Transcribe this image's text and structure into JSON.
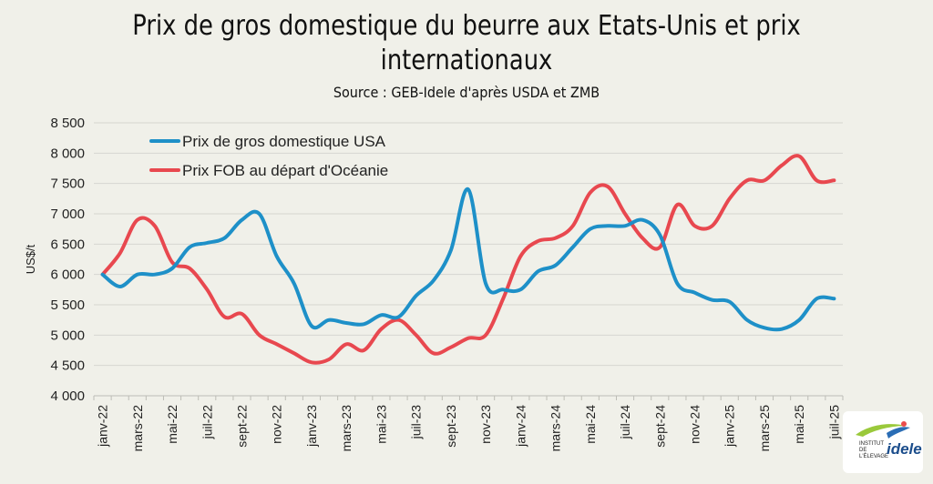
{
  "chart_data": {
    "type": "line",
    "title": "Prix de gros domestique du beurre aux Etats-Unis et prix internationaux",
    "subtitle": "Source : GEB-Idele d'après USDA et ZMB",
    "ylabel": "US$/t",
    "ylim": [
      4000,
      8500
    ],
    "yticks": [
      4000,
      4500,
      5000,
      5500,
      6000,
      6500,
      7000,
      7500,
      8000,
      8500
    ],
    "ytick_labels": [
      "4 000",
      "4 500",
      "5 000",
      "5 500",
      "6 000",
      "6 500",
      "7 000",
      "7 500",
      "8 000",
      "8 500"
    ],
    "categories": [
      "janv-22",
      "févr-22",
      "mars-22",
      "avr-22",
      "mai-22",
      "juin-22",
      "juil-22",
      "août-22",
      "sept-22",
      "oct-22",
      "nov-22",
      "déc-22",
      "janv-23",
      "févr-23",
      "mars-23",
      "avr-23",
      "mai-23",
      "juin-23",
      "juil-23",
      "août-23",
      "sept-23",
      "oct-23",
      "nov-23",
      "déc-23",
      "janv-24",
      "févr-24",
      "mars-24",
      "avr-24",
      "mai-24",
      "juin-24",
      "juil-24",
      "août-24",
      "sept-24",
      "oct-24",
      "nov-24",
      "déc-24",
      "janv-25",
      "févr-25",
      "mars-25",
      "avr-25",
      "mai-25",
      "juin-25",
      "juil-25"
    ],
    "xtick_labels": [
      "janv-22",
      "mars-22",
      "mai-22",
      "juil-22",
      "sept-22",
      "nov-22",
      "janv-23",
      "mars-23",
      "mai-23",
      "juil-23",
      "sept-23",
      "nov-23",
      "janv-24",
      "mars-24",
      "mai-24",
      "juil-24",
      "sept-24",
      "nov-24",
      "janv-25",
      "mars-25",
      "mai-25",
      "juil-25"
    ],
    "legend_position": "top-left",
    "grid": true,
    "series": [
      {
        "name": "Prix de gros domestique USA",
        "color": "#1e90c8",
        "values": [
          6000,
          5800,
          6000,
          6000,
          6100,
          6450,
          6520,
          6600,
          6900,
          7000,
          6300,
          5850,
          5150,
          5250,
          5200,
          5180,
          5330,
          5300,
          5650,
          5900,
          6400,
          7400,
          5850,
          5750,
          5750,
          6050,
          6150,
          6450,
          6750,
          6800,
          6800,
          6900,
          6650,
          5850,
          5700,
          5580,
          5550,
          5250,
          5120,
          5100,
          5250,
          5600,
          5600
        ]
      },
      {
        "name": "Prix FOB au départ d'Océanie",
        "color": "#e8484f",
        "values": [
          6000,
          6350,
          6900,
          6800,
          6200,
          6100,
          5750,
          5300,
          5350,
          5000,
          4850,
          4700,
          4550,
          4600,
          4850,
          4750,
          5100,
          5250,
          5000,
          4700,
          4800,
          4950,
          5000,
          5600,
          6300,
          6550,
          6600,
          6800,
          7350,
          7450,
          7000,
          6600,
          6450,
          7150,
          6800,
          6800,
          7250,
          7550,
          7550,
          7800,
          7950,
          7550,
          7550
        ]
      }
    ]
  },
  "logo": {
    "small_text": "INSTITUT DE L'ÉLEVAGE",
    "big_text": "idele"
  }
}
